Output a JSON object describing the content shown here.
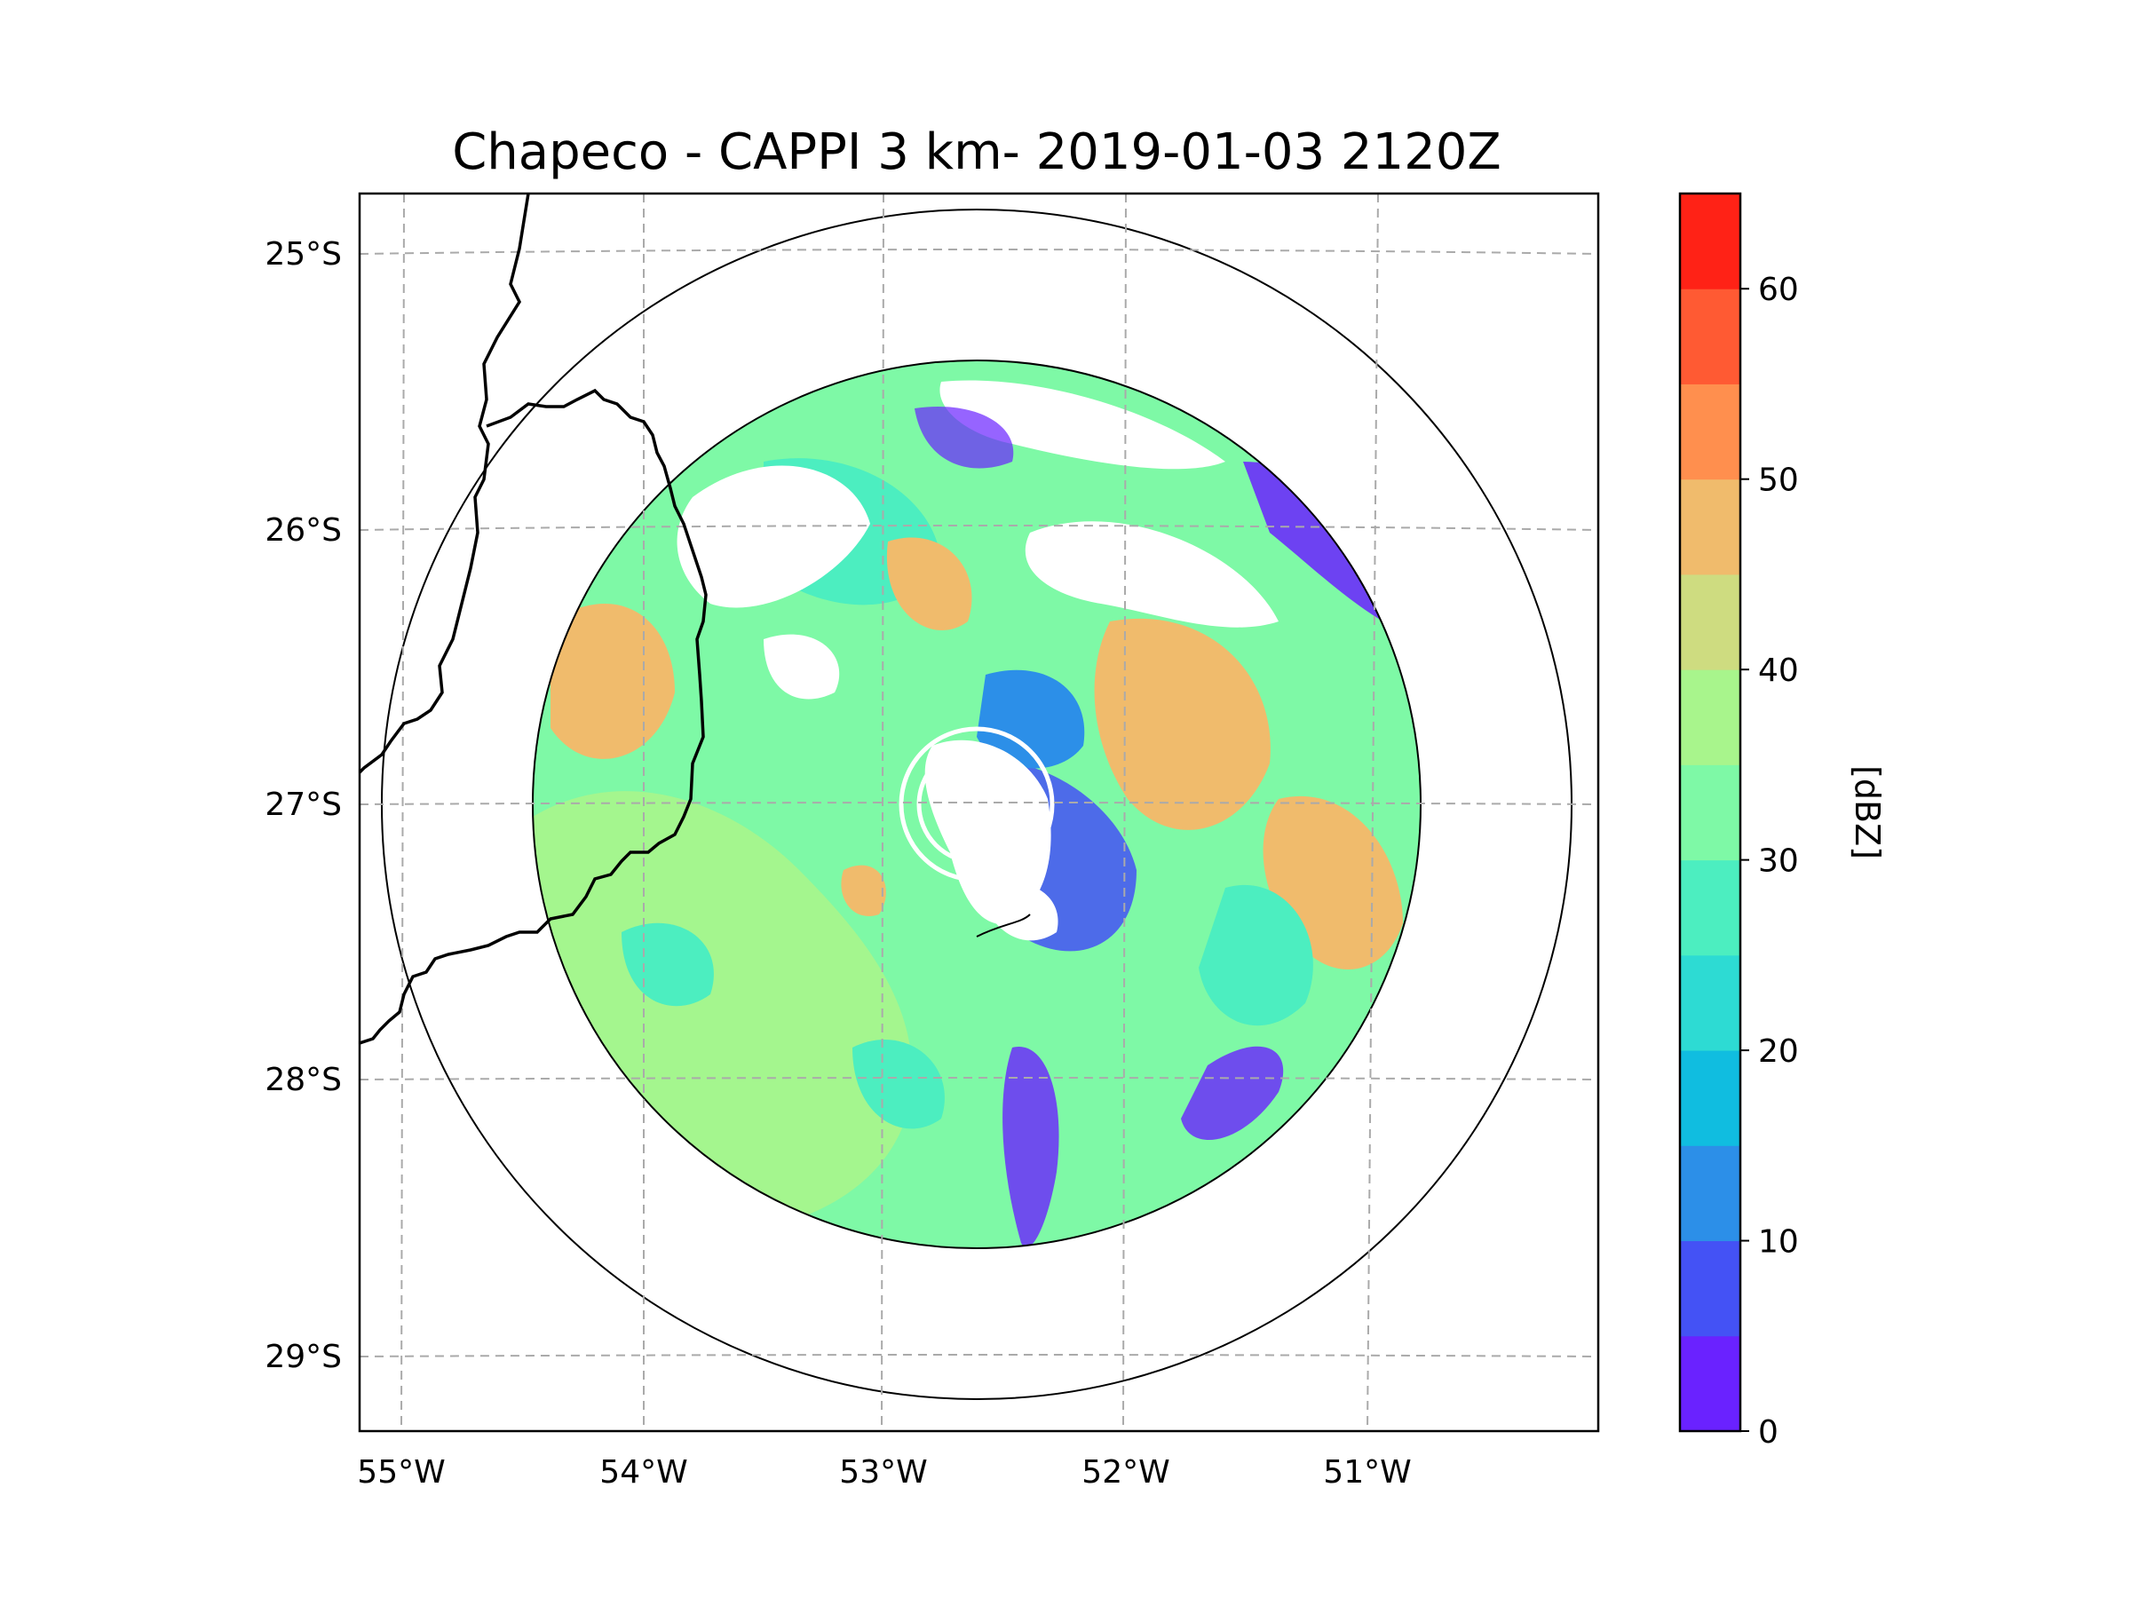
{
  "title": "Chapeco - CAPPI 3 km- 2019-01-03 2120Z",
  "map": {
    "lon_ticks": [
      "55°W",
      "54°W",
      "53°W",
      "52°W",
      "51°W"
    ],
    "lat_ticks": [
      "25°S",
      "26°S",
      "27°S",
      "28°S",
      "29°S"
    ],
    "lon_values": [
      -55,
      -54,
      -53,
      -52,
      -51
    ],
    "lat_values": [
      -25,
      -26,
      -27,
      -28,
      -29
    ],
    "radar_center": {
      "lon": -52.6,
      "lat": -27.0
    },
    "range_rings": [
      "inner data ring",
      "outer ring"
    ]
  },
  "colorbar": {
    "label": "[dBZ]",
    "ticks": [
      "0",
      "10",
      "20",
      "30",
      "40",
      "50",
      "60"
    ],
    "tick_values": [
      0,
      10,
      20,
      30,
      40,
      50,
      60
    ],
    "min": 0,
    "max": 65,
    "levels": [
      {
        "from": 0,
        "to": 5,
        "color": "#6a22ff"
      },
      {
        "from": 5,
        "to": 10,
        "color": "#4452f5"
      },
      {
        "from": 10,
        "to": 15,
        "color": "#2c8fe8"
      },
      {
        "from": 15,
        "to": 20,
        "color": "#10bde0"
      },
      {
        "from": 20,
        "to": 25,
        "color": "#2ddbd3"
      },
      {
        "from": 25,
        "to": 30,
        "color": "#4ceec0"
      },
      {
        "from": 30,
        "to": 35,
        "color": "#7ef9a6"
      },
      {
        "from": 35,
        "to": 40,
        "color": "#a8f58c"
      },
      {
        "from": 40,
        "to": 45,
        "color": "#cedc80"
      },
      {
        "from": 45,
        "to": 50,
        "color": "#f0bb6c"
      },
      {
        "from": 50,
        "to": 55,
        "color": "#ff8f4e"
      },
      {
        "from": 55,
        "to": 60,
        "color": "#ff5a33"
      },
      {
        "from": 60,
        "to": 65,
        "color": "#ff2216"
      }
    ]
  }
}
